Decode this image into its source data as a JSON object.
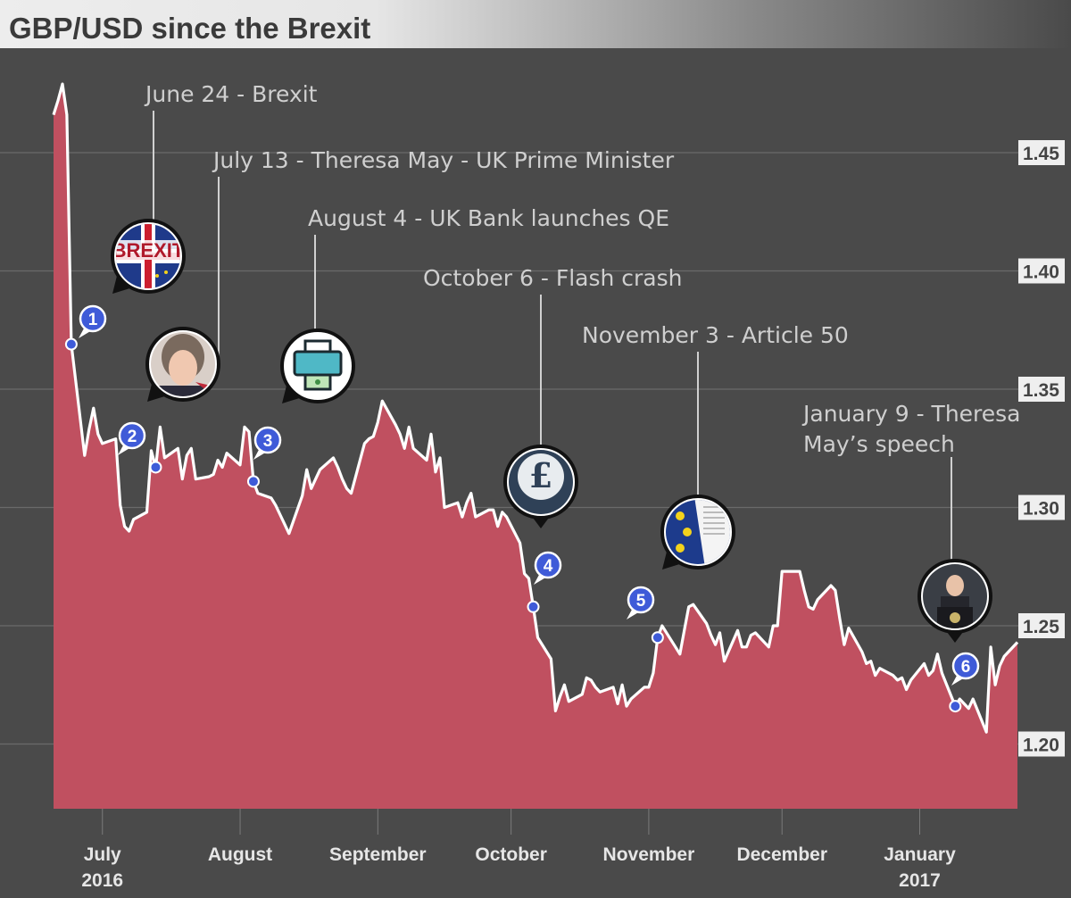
{
  "chart_data": {
    "type": "area",
    "title": "GBP/USD since the Brexit",
    "xlabel": "",
    "ylabel": "",
    "ylim": [
      1.165,
      1.479
    ],
    "x_range": [
      "2016-06-20",
      "2017-01-23"
    ],
    "grid": true,
    "colors": {
      "area": "#c05060",
      "line": "#ffffff",
      "background": "#4a4a4a",
      "grid": "#6a6a6a",
      "marker": "#3f5bd8",
      "title_bar": "#ededed"
    },
    "yticks": [
      "1.45",
      "1.40",
      "1.35",
      "1.30",
      "1.25",
      "1.20"
    ],
    "ytick_values": [
      1.45,
      1.4,
      1.35,
      1.3,
      1.25,
      1.2
    ],
    "xticks": [
      {
        "date": "2016-07-01",
        "label": "July",
        "sublabel": "2016"
      },
      {
        "date": "2016-08-01",
        "label": "August",
        "sublabel": ""
      },
      {
        "date": "2016-09-01",
        "label": "September",
        "sublabel": ""
      },
      {
        "date": "2016-10-01",
        "label": "October",
        "sublabel": ""
      },
      {
        "date": "2016-11-01",
        "label": "November",
        "sublabel": ""
      },
      {
        "date": "2016-12-01",
        "label": "December",
        "sublabel": ""
      },
      {
        "date": "2017-01-01",
        "label": "January",
        "sublabel": "2017"
      }
    ],
    "series": [
      {
        "points": [
          [
            "2016-06-20",
            1.466
          ],
          [
            "2016-06-21",
            1.472
          ],
          [
            "2016-06-22",
            1.479
          ],
          [
            "2016-06-23",
            1.466
          ],
          [
            "2016-06-24",
            1.369
          ],
          [
            "2016-06-27",
            1.322
          ],
          [
            "2016-06-28",
            1.333
          ],
          [
            "2016-06-29",
            1.342
          ],
          [
            "2016-06-30",
            1.331
          ],
          [
            "2016-07-01",
            1.327
          ],
          [
            "2016-07-04",
            1.329
          ],
          [
            "2016-07-05",
            1.301
          ],
          [
            "2016-07-06",
            1.292
          ],
          [
            "2016-07-07",
            1.29
          ],
          [
            "2016-07-08",
            1.295
          ],
          [
            "2016-07-11",
            1.298
          ],
          [
            "2016-07-12",
            1.324
          ],
          [
            "2016-07-13",
            1.317
          ],
          [
            "2016-07-14",
            1.334
          ],
          [
            "2016-07-15",
            1.321
          ],
          [
            "2016-07-18",
            1.325
          ],
          [
            "2016-07-19",
            1.312
          ],
          [
            "2016-07-20",
            1.322
          ],
          [
            "2016-07-21",
            1.325
          ],
          [
            "2016-07-22",
            1.312
          ],
          [
            "2016-07-25",
            1.313
          ],
          [
            "2016-07-26",
            1.314
          ],
          [
            "2016-07-27",
            1.32
          ],
          [
            "2016-07-28",
            1.317
          ],
          [
            "2016-07-29",
            1.323
          ],
          [
            "2016-08-01",
            1.318
          ],
          [
            "2016-08-02",
            1.334
          ],
          [
            "2016-08-03",
            1.332
          ],
          [
            "2016-08-04",
            1.311
          ],
          [
            "2016-08-05",
            1.306
          ],
          [
            "2016-08-08",
            1.304
          ],
          [
            "2016-08-09",
            1.301
          ],
          [
            "2016-08-10",
            1.297
          ],
          [
            "2016-08-11",
            1.293
          ],
          [
            "2016-08-12",
            1.289
          ],
          [
            "2016-08-15",
            1.305
          ],
          [
            "2016-08-16",
            1.316
          ],
          [
            "2016-08-17",
            1.308
          ],
          [
            "2016-08-18",
            1.312
          ],
          [
            "2016-08-19",
            1.316
          ],
          [
            "2016-08-22",
            1.321
          ],
          [
            "2016-08-23",
            1.317
          ],
          [
            "2016-08-24",
            1.312
          ],
          [
            "2016-08-25",
            1.308
          ],
          [
            "2016-08-26",
            1.306
          ],
          [
            "2016-08-29",
            1.327
          ],
          [
            "2016-08-30",
            1.329
          ],
          [
            "2016-08-31",
            1.33
          ],
          [
            "2016-09-01",
            1.336
          ],
          [
            "2016-09-02",
            1.345
          ],
          [
            "2016-09-05",
            1.335
          ],
          [
            "2016-09-06",
            1.331
          ],
          [
            "2016-09-07",
            1.325
          ],
          [
            "2016-09-08",
            1.334
          ],
          [
            "2016-09-09",
            1.325
          ],
          [
            "2016-09-12",
            1.32
          ],
          [
            "2016-09-13",
            1.331
          ],
          [
            "2016-09-14",
            1.315
          ],
          [
            "2016-09-15",
            1.321
          ],
          [
            "2016-09-16",
            1.3
          ],
          [
            "2016-09-19",
            1.302
          ],
          [
            "2016-09-20",
            1.296
          ],
          [
            "2016-09-21",
            1.302
          ],
          [
            "2016-09-22",
            1.306
          ],
          [
            "2016-09-23",
            1.296
          ],
          [
            "2016-09-26",
            1.299
          ],
          [
            "2016-09-27",
            1.299
          ],
          [
            "2016-09-28",
            1.292
          ],
          [
            "2016-09-29",
            1.298
          ],
          [
            "2016-09-30",
            1.296
          ],
          [
            "2016-10-03",
            1.285
          ],
          [
            "2016-10-04",
            1.272
          ],
          [
            "2016-10-05",
            1.27
          ],
          [
            "2016-10-06",
            1.258
          ],
          [
            "2016-10-07",
            1.245
          ],
          [
            "2016-10-10",
            1.236
          ],
          [
            "2016-10-11",
            1.214
          ],
          [
            "2016-10-12",
            1.22
          ],
          [
            "2016-10-13",
            1.225
          ],
          [
            "2016-10-14",
            1.218
          ],
          [
            "2016-10-17",
            1.221
          ],
          [
            "2016-10-18",
            1.228
          ],
          [
            "2016-10-19",
            1.227
          ],
          [
            "2016-10-20",
            1.224
          ],
          [
            "2016-10-21",
            1.222
          ],
          [
            "2016-10-24",
            1.224
          ],
          [
            "2016-10-25",
            1.217
          ],
          [
            "2016-10-26",
            1.225
          ],
          [
            "2016-10-27",
            1.216
          ],
          [
            "2016-10-28",
            1.219
          ],
          [
            "2016-10-31",
            1.224
          ],
          [
            "2016-11-01",
            1.224
          ],
          [
            "2016-11-02",
            1.23
          ],
          [
            "2016-11-03",
            1.245
          ],
          [
            "2016-11-04",
            1.25
          ],
          [
            "2016-11-07",
            1.241
          ],
          [
            "2016-11-08",
            1.238
          ],
          [
            "2016-11-09",
            1.248
          ],
          [
            "2016-11-10",
            1.258
          ],
          [
            "2016-11-11",
            1.259
          ],
          [
            "2016-11-14",
            1.251
          ],
          [
            "2016-11-15",
            1.246
          ],
          [
            "2016-11-16",
            1.242
          ],
          [
            "2016-11-17",
            1.247
          ],
          [
            "2016-11-18",
            1.235
          ],
          [
            "2016-11-21",
            1.248
          ],
          [
            "2016-11-22",
            1.241
          ],
          [
            "2016-11-23",
            1.241
          ],
          [
            "2016-11-24",
            1.246
          ],
          [
            "2016-11-25",
            1.247
          ],
          [
            "2016-11-28",
            1.241
          ],
          [
            "2016-11-29",
            1.25
          ],
          [
            "2016-11-30",
            1.25
          ],
          [
            "2016-12-01",
            1.273
          ],
          [
            "2016-12-02",
            1.273
          ],
          [
            "2016-12-05",
            1.273
          ],
          [
            "2016-12-06",
            1.265
          ],
          [
            "2016-12-07",
            1.258
          ],
          [
            "2016-12-08",
            1.257
          ],
          [
            "2016-12-09",
            1.261
          ],
          [
            "2016-12-12",
            1.267
          ],
          [
            "2016-12-13",
            1.265
          ],
          [
            "2016-12-14",
            1.253
          ],
          [
            "2016-12-15",
            1.242
          ],
          [
            "2016-12-16",
            1.249
          ],
          [
            "2016-12-19",
            1.239
          ],
          [
            "2016-12-20",
            1.234
          ],
          [
            "2016-12-21",
            1.235
          ],
          [
            "2016-12-22",
            1.229
          ],
          [
            "2016-12-23",
            1.232
          ],
          [
            "2016-12-26",
            1.229
          ],
          [
            "2016-12-27",
            1.227
          ],
          [
            "2016-12-28",
            1.228
          ],
          [
            "2016-12-29",
            1.223
          ],
          [
            "2016-12-30",
            1.227
          ],
          [
            "2017-01-02",
            1.234
          ],
          [
            "2017-01-03",
            1.229
          ],
          [
            "2017-01-04",
            1.231
          ],
          [
            "2017-01-05",
            1.238
          ],
          [
            "2017-01-06",
            1.23
          ],
          [
            "2017-01-09",
            1.216
          ],
          [
            "2017-01-10",
            1.219
          ],
          [
            "2017-01-11",
            1.217
          ],
          [
            "2017-01-12",
            1.215
          ],
          [
            "2017-01-13",
            1.219
          ],
          [
            "2017-01-16",
            1.205
          ],
          [
            "2017-01-17",
            1.241
          ],
          [
            "2017-01-18",
            1.225
          ],
          [
            "2017-01-19",
            1.233
          ],
          [
            "2017-01-20",
            1.237
          ],
          [
            "2017-01-23",
            1.243
          ]
        ]
      }
    ],
    "markers": [
      {
        "num": "1",
        "date": "2016-06-24",
        "value": 1.369
      },
      {
        "num": "2",
        "date": "2016-07-13",
        "value": 1.317
      },
      {
        "num": "3",
        "date": "2016-08-04",
        "value": 1.311
      },
      {
        "num": "4",
        "date": "2016-10-06",
        "value": 1.258
      },
      {
        "num": "5",
        "date": "2016-11-03",
        "value": 1.245
      },
      {
        "num": "6",
        "date": "2017-01-09",
        "value": 1.216
      }
    ],
    "annotations": [
      {
        "lines": [
          "June 24 - Brexit"
        ],
        "icon": "brexit-flag-icon"
      },
      {
        "lines": [
          "July 13 - Theresa May - UK Prime Minister"
        ],
        "icon": "theresa-may-portrait-icon"
      },
      {
        "lines": [
          "August 4 - UK Bank launches QE"
        ],
        "icon": "money-printer-icon"
      },
      {
        "lines": [
          "October 6 - Flash crash"
        ],
        "icon": "pound-sign-icon"
      },
      {
        "lines": [
          "November 3 - Article 50"
        ],
        "icon": "eu-document-icon"
      },
      {
        "lines": [
          "January 9 - Theresa",
          "May’s speech"
        ],
        "icon": "speech-podium-icon"
      }
    ],
    "icon_labels": {
      "brexit": "BREXIT",
      "pound": "£"
    }
  }
}
